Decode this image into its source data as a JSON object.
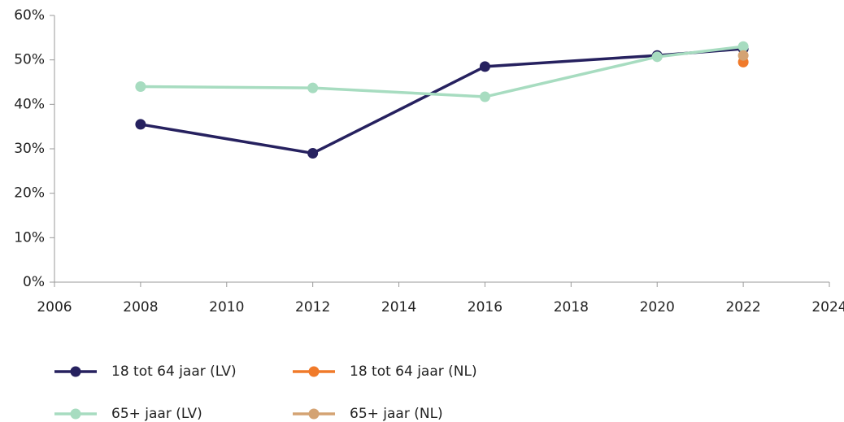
{
  "chart_data": {
    "type": "line",
    "x": [
      2008,
      2012,
      2016,
      2020,
      2022
    ],
    "series": [
      {
        "name": "18 tot 64 jaar (LV)",
        "color": "#26215f",
        "values": [
          35.5,
          29,
          48.5,
          51,
          52.5
        ]
      },
      {
        "name": "18 tot 64 jaar (NL)",
        "color": "#f07a2a",
        "values": [
          null,
          null,
          null,
          null,
          49.5
        ]
      },
      {
        "name": "65+ jaar (LV)",
        "color": "#a7dcc0",
        "values": [
          44,
          43.7,
          41.7,
          50.7,
          53
        ]
      },
      {
        "name": "65+ jaar (NL)",
        "color": "#d4a373",
        "values": [
          null,
          null,
          null,
          null,
          51
        ]
      }
    ],
    "xlim": [
      2006,
      2024
    ],
    "xticks": [
      2006,
      2008,
      2010,
      2012,
      2014,
      2016,
      2018,
      2020,
      2022,
      2024
    ],
    "ylim": [
      0,
      60
    ],
    "yticks": [
      {
        "value": 0,
        "label": "0%"
      },
      {
        "value": 10,
        "label": "10%"
      },
      {
        "value": 20,
        "label": "20%"
      },
      {
        "value": 30,
        "label": "30%"
      },
      {
        "value": 40,
        "label": "40%"
      },
      {
        "value": 50,
        "label": "50%"
      },
      {
        "value": 60,
        "label": "60%"
      }
    ]
  }
}
